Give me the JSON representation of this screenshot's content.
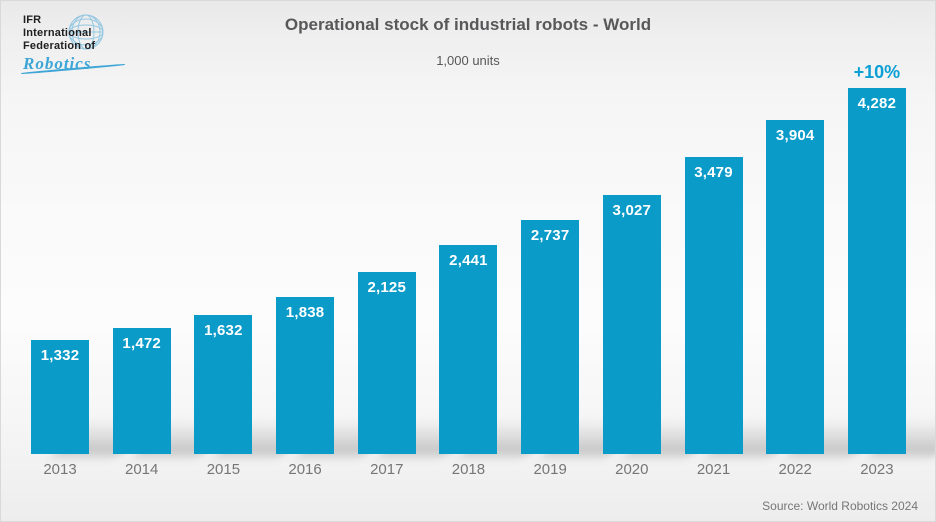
{
  "header": {
    "logo": {
      "line1": "IFR",
      "line2": "International",
      "line3": "Federation of",
      "script": "Robotics"
    },
    "title": "Operational stock of industrial robots - World",
    "subtitle": "1,000 units"
  },
  "chart_data": {
    "type": "bar",
    "title": "Operational stock of industrial robots - World",
    "units_label": "1,000 units",
    "categories": [
      "2013",
      "2014",
      "2015",
      "2016",
      "2017",
      "2018",
      "2019",
      "2020",
      "2021",
      "2022",
      "2023"
    ],
    "values": [
      1332,
      1472,
      1632,
      1838,
      2125,
      2441,
      2737,
      3027,
      3479,
      3904,
      4282
    ],
    "value_labels": [
      "1,332",
      "1,472",
      "1,632",
      "1,838",
      "2,125",
      "2,441",
      "2,737",
      "3,027",
      "3,479",
      "3,904",
      "4,282"
    ],
    "annotation": {
      "text": "+10%",
      "applies_to": "2023"
    },
    "xlabel": "",
    "ylabel": "",
    "ylim": [
      0,
      4282
    ],
    "grid": false,
    "legend": false,
    "bar_color": "#0a9bc9",
    "annotation_color": "#0aa0d6",
    "value_label_color": "#ffffff",
    "axis_label_color": "#767676",
    "title_color": "#58585a"
  },
  "footer": {
    "source": "Source: World Robotics 2024"
  }
}
